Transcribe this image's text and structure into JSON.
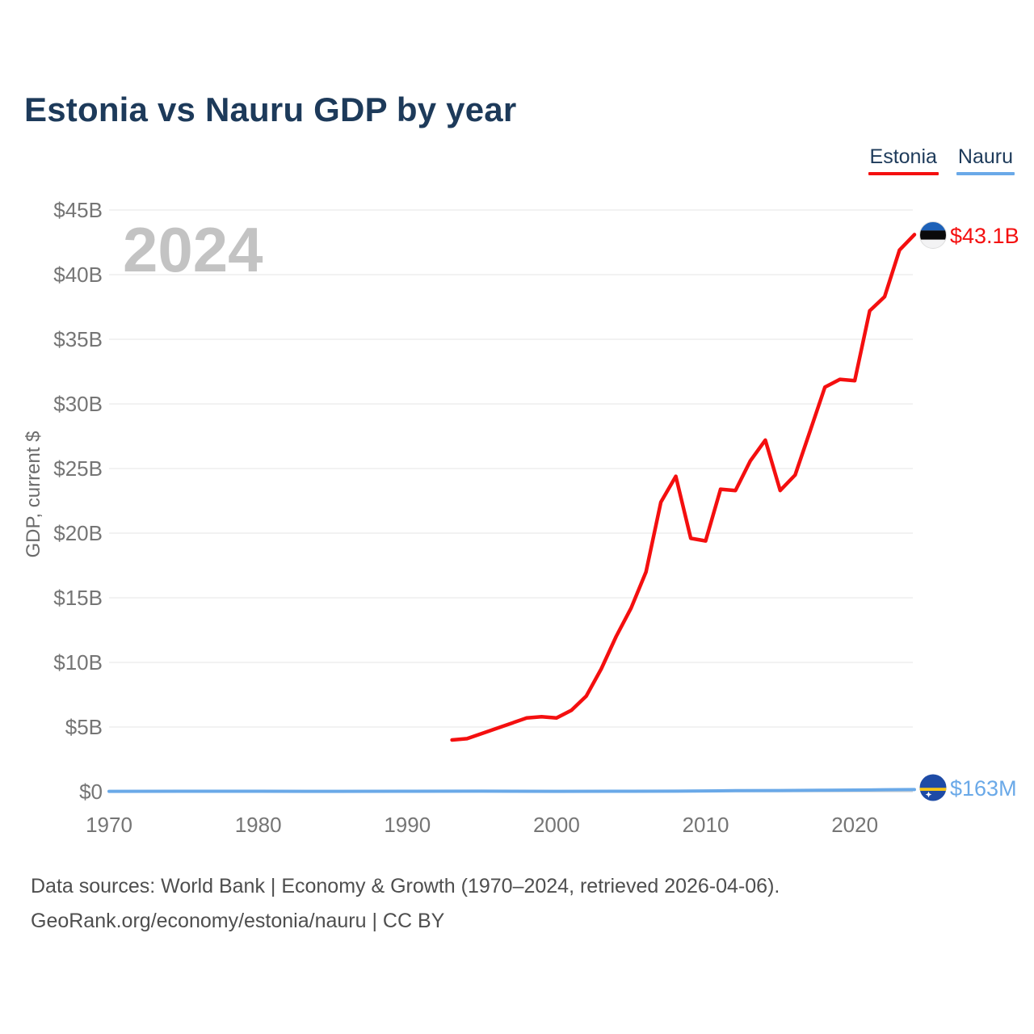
{
  "page": {
    "title": "Estonia vs Nauru GDP by year",
    "watermark": "2024",
    "footer_line1": "Data sources: World Bank | Economy & Growth (1970–2024, retrieved 2026-04-06).",
    "footer_line2": "GeoRank.org/economy/estonia/nauru | CC BY"
  },
  "legend": [
    {
      "label": "Estonia",
      "color": "#f40f0f"
    },
    {
      "label": "Nauru",
      "color": "#6aa9e8"
    }
  ],
  "colors": {
    "title_navy": "#1d3a5a",
    "estonia_red": "#f40f0f",
    "nauru_blue": "#6aa9e8",
    "gridline": "#ededed",
    "zero_line": "#d6d6d6",
    "tick_gray": "#757575",
    "watermark_gray": "#c3c3c3",
    "estonia_flag_blue": "#1d61b8",
    "nauru_flag_navy": "#1e4ba6",
    "nauru_flag_yellow": "#f5c518"
  },
  "chart_data": {
    "type": "line",
    "title": "Estonia vs Nauru GDP by year",
    "xlabel": "",
    "ylabel": "GDP, current $",
    "xlim": [
      1970,
      2024
    ],
    "ylim": [
      0,
      45000000000
    ],
    "grid": true,
    "legend_position": "top-right",
    "x_ticks": [
      1970,
      1980,
      1990,
      2000,
      2010,
      2020
    ],
    "y_ticks": [
      {
        "value": 0,
        "label": "$0"
      },
      {
        "value": 5,
        "label": "$5B"
      },
      {
        "value": 10,
        "label": "$10B"
      },
      {
        "value": 15,
        "label": "$15B"
      },
      {
        "value": 20,
        "label": "$20B"
      },
      {
        "value": 25,
        "label": "$25B"
      },
      {
        "value": 30,
        "label": "$30B"
      },
      {
        "value": 35,
        "label": "$35B"
      },
      {
        "value": 40,
        "label": "$40B"
      },
      {
        "value": 45,
        "label": "$45B"
      }
    ],
    "y_unit": "billions of current US$",
    "series": [
      {
        "name": "Estonia",
        "color": "#f40f0f",
        "end_label": "$43.1B",
        "x": [
          1993,
          1994,
          1995,
          1996,
          1997,
          1998,
          1999,
          2000,
          2001,
          2002,
          2003,
          2004,
          2005,
          2006,
          2007,
          2008,
          2009,
          2010,
          2011,
          2012,
          2013,
          2014,
          2015,
          2016,
          2017,
          2018,
          2019,
          2020,
          2021,
          2022,
          2023,
          2024
        ],
        "y": [
          4.0,
          4.1,
          4.5,
          4.9,
          5.3,
          5.7,
          5.8,
          5.7,
          6.3,
          7.4,
          9.5,
          12.0,
          14.2,
          17.0,
          22.4,
          24.4,
          19.6,
          19.4,
          23.4,
          23.3,
          25.6,
          27.2,
          23.3,
          24.5,
          27.9,
          31.3,
          31.9,
          31.8,
          37.2,
          38.3,
          41.9,
          43.1
        ]
      },
      {
        "name": "Nauru",
        "color": "#6aa9e8",
        "end_label": "$163M",
        "x": [
          1970,
          1975,
          1980,
          1985,
          1990,
          1995,
          2000,
          2005,
          2008,
          2010,
          2012,
          2015,
          2018,
          2020,
          2021,
          2022,
          2023,
          2024
        ],
        "y": [
          0.022,
          0.03,
          0.033,
          0.025,
          0.032,
          0.038,
          0.027,
          0.029,
          0.035,
          0.058,
          0.078,
          0.087,
          0.115,
          0.128,
          0.133,
          0.147,
          0.154,
          0.163
        ]
      }
    ]
  }
}
